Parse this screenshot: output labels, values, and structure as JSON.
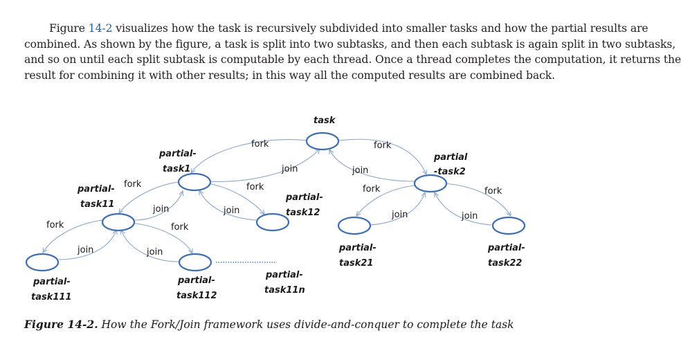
{
  "paragraph": {
    "prefix": "Figure ",
    "figure_ref": "14-2",
    "body": " visualizes how the task is recursively subdivided into smaller tasks and how the partial results are combined. As shown by the figure, a task is split into two subtasks, and then each subtask is again split in two subtasks, and so on until each split subtask is computable by each thread. Once a thread completes the computation, it returns the result for combining it with other results; in this way all the computed results are combined back."
  },
  "diagram": {
    "nodes": {
      "task": "task",
      "task1_l1": "partial-",
      "task1_l2": "task1",
      "task2_l1": "partial",
      "task2_l2": "-task2",
      "task11_l1": "partial-",
      "task11_l2": "task11",
      "task12_l1": "partial-",
      "task12_l2": "task12",
      "task21_l1": "partial-",
      "task21_l2": "task21",
      "task22_l1": "partial-",
      "task22_l2": "task22",
      "task111_l1": "partial-",
      "task111_l2": "task111",
      "task112_l1": "partial-",
      "task112_l2": "task112",
      "task11n_l1": "partial-",
      "task11n_l2": "task11n"
    },
    "edges": {
      "fork": "fork",
      "join": "join"
    },
    "colors": {
      "node_stroke": "#3f6fb0",
      "arrow": "#8aa6cf"
    }
  },
  "caption": {
    "number": "Figure 14-2.",
    "text": " How the Fork/Join framework uses divide-and-conquer to complete the task"
  }
}
